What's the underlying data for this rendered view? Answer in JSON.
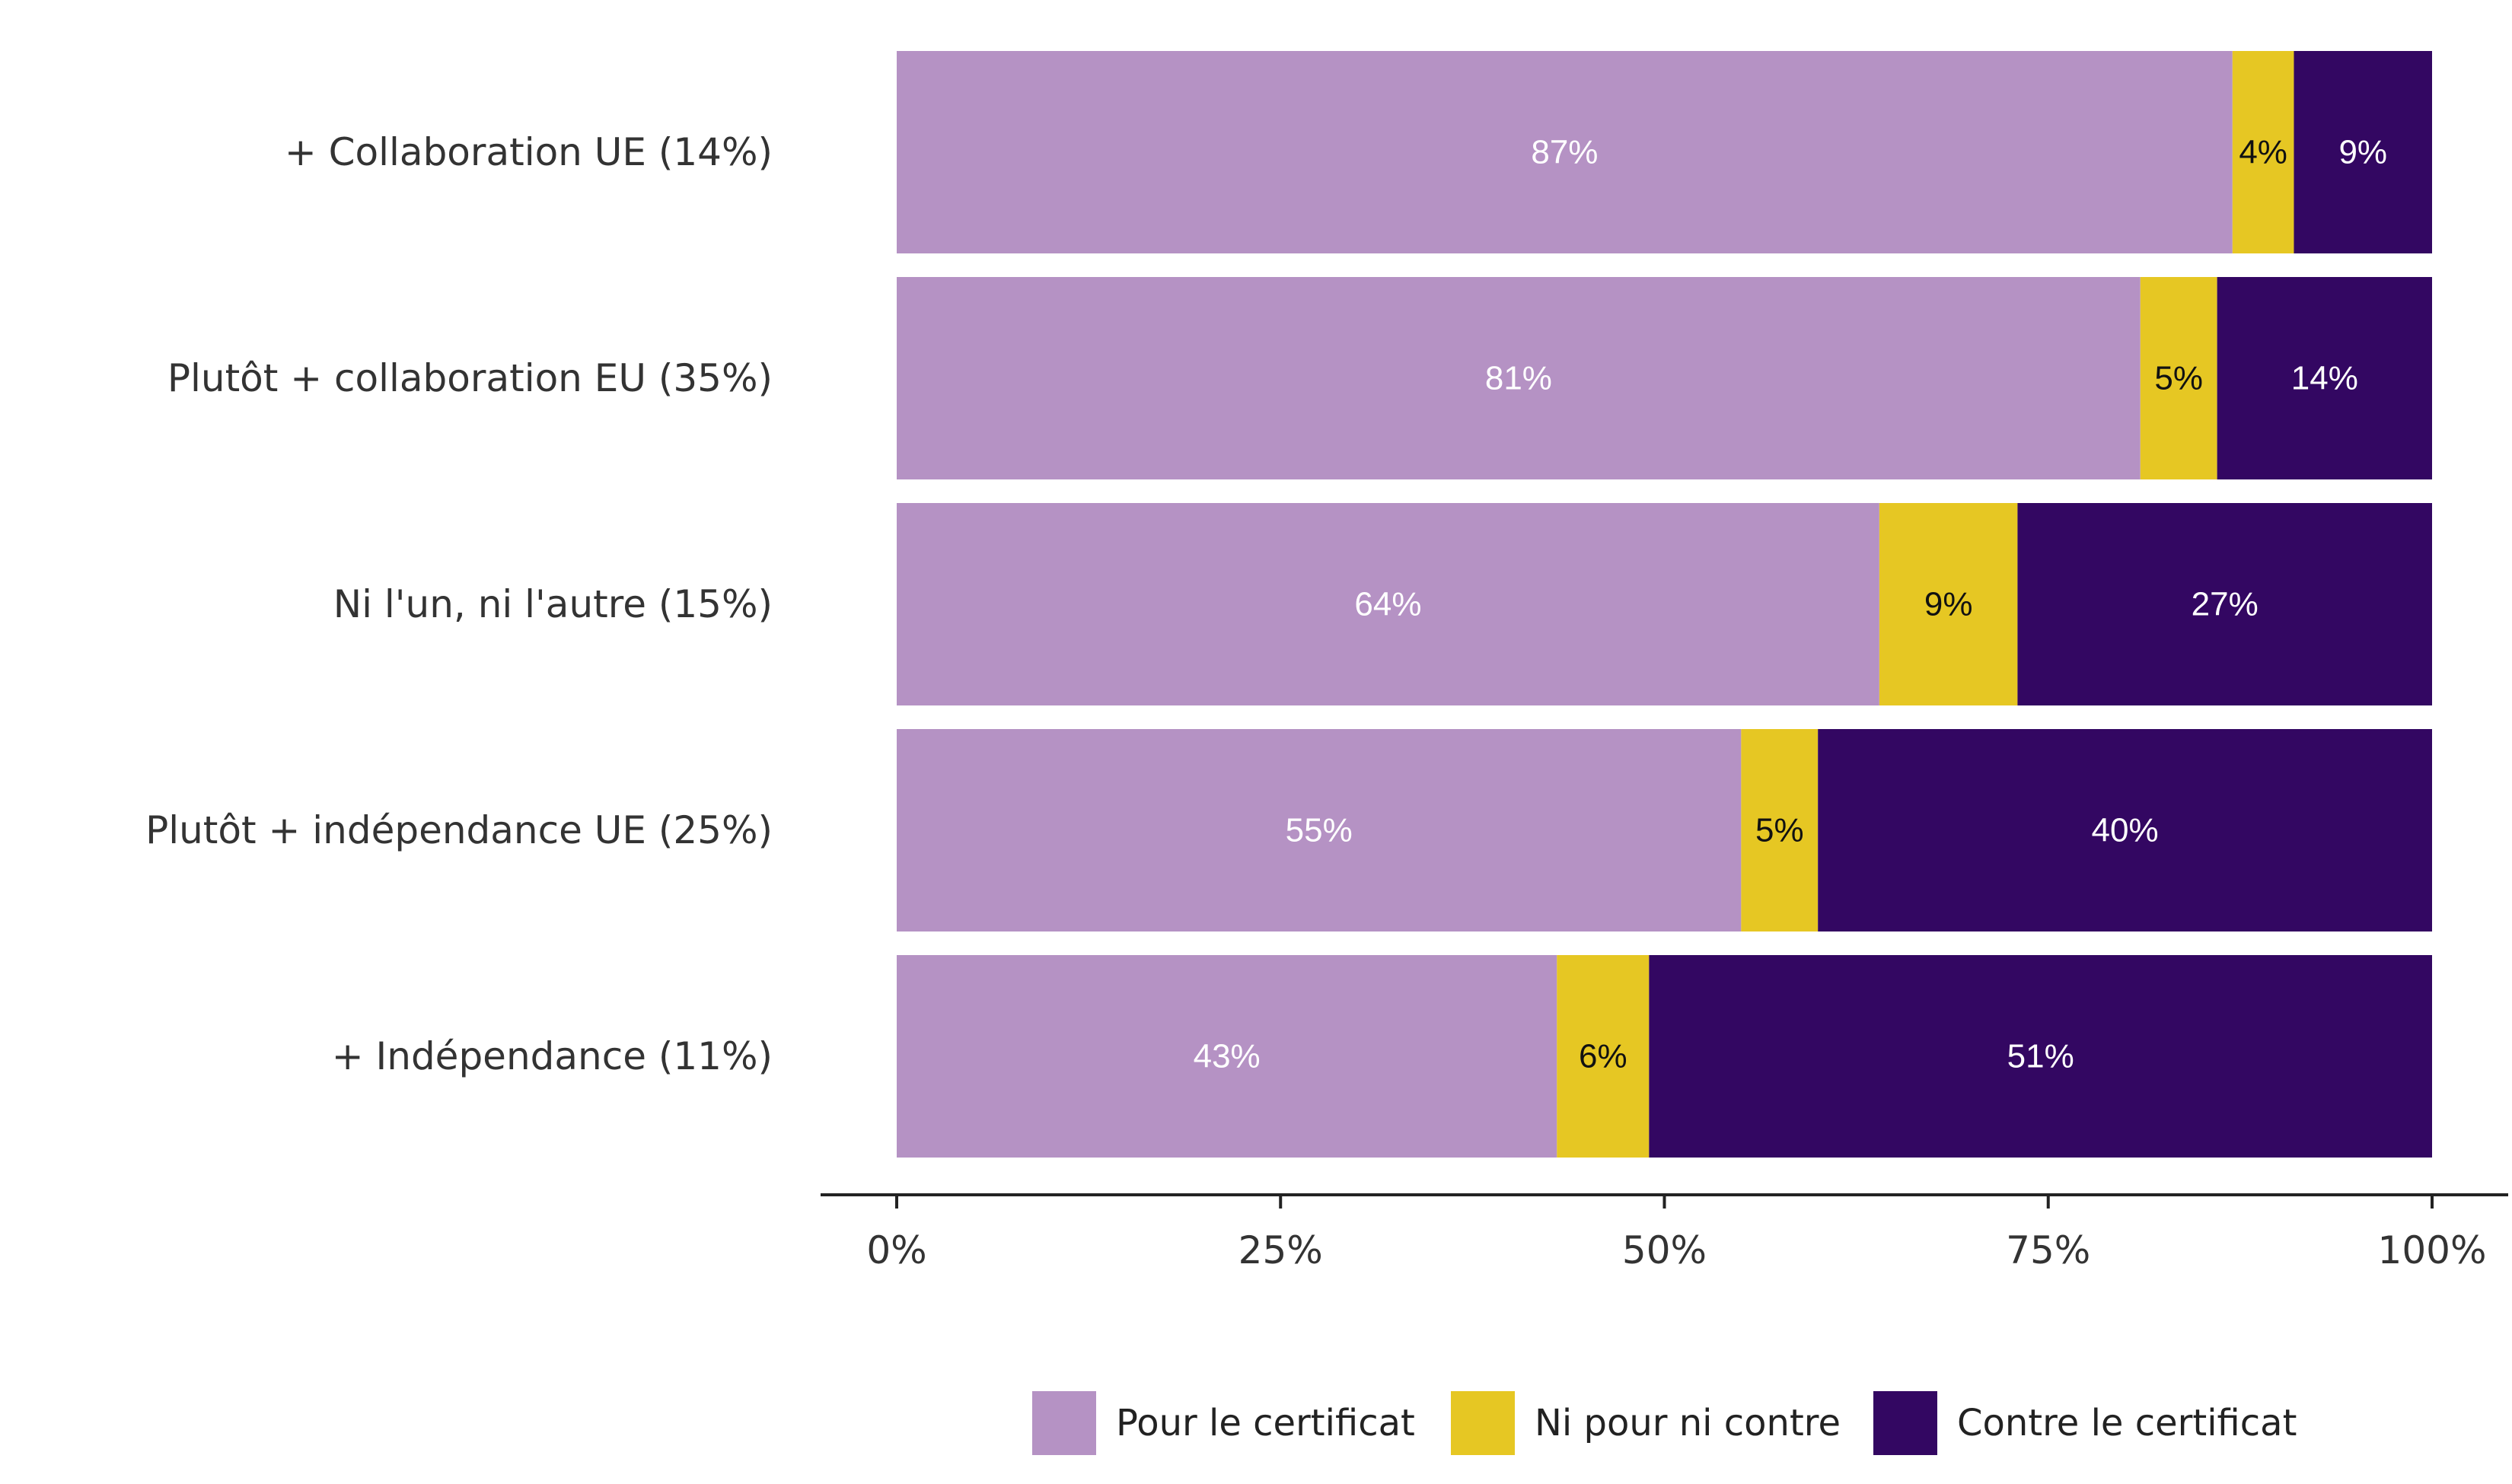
{
  "chart_data": {
    "type": "bar",
    "orientation": "horizontal",
    "stacked": true,
    "categories": [
      "+ Collaboration UE (14%)",
      "Plutôt + collaboration EU (35%)",
      "Ni l'un, ni l'autre (15%)",
      "Plutôt + indépendance UE (25%)",
      "+ Indépendance (11%)"
    ],
    "series": [
      {
        "name": "Pour le certificat",
        "color": "#b592c4",
        "label_color": "#ffffff",
        "values": [
          87,
          81,
          64,
          55,
          43
        ],
        "labels": [
          "87%",
          "81%",
          "64%",
          "55%",
          "43%"
        ]
      },
      {
        "name": "Ni pour ni contre",
        "color": "#e6c723",
        "label_color": "#111111",
        "values": [
          4,
          5,
          9,
          5,
          6
        ],
        "labels": [
          "4%",
          "5%",
          "9%",
          "5%",
          "6%"
        ]
      },
      {
        "name": "Contre le certificat",
        "color": "#330762",
        "label_color": "#ffffff",
        "values": [
          9,
          14,
          27,
          40,
          51
        ],
        "labels": [
          "9%",
          "14%",
          "27%",
          "40%",
          "51%"
        ]
      }
    ],
    "xlim": [
      0,
      100
    ],
    "x_ticks": [
      0,
      25,
      50,
      75,
      100
    ],
    "x_tick_labels": [
      "0%",
      "25%",
      "50%",
      "75%",
      "100%"
    ],
    "grid": false,
    "legend_position": "bottom"
  }
}
